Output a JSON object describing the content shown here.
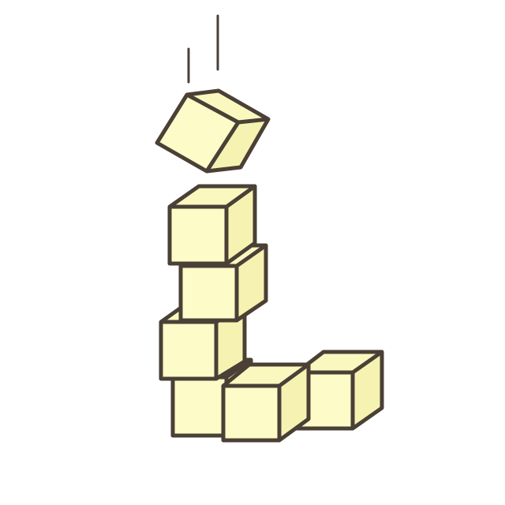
{
  "illustration": {
    "subject": "stacked-cubes",
    "colors": {
      "cube_face": "#fdfbc8",
      "cube_top": "#fbf8bf",
      "cube_side": "#f6f2b2",
      "outline": "#4a4036",
      "background": "#ffffff"
    },
    "icons": [
      "falling-cube-icon",
      "stacked-cube-icon",
      "motion-line-icon"
    ]
  }
}
